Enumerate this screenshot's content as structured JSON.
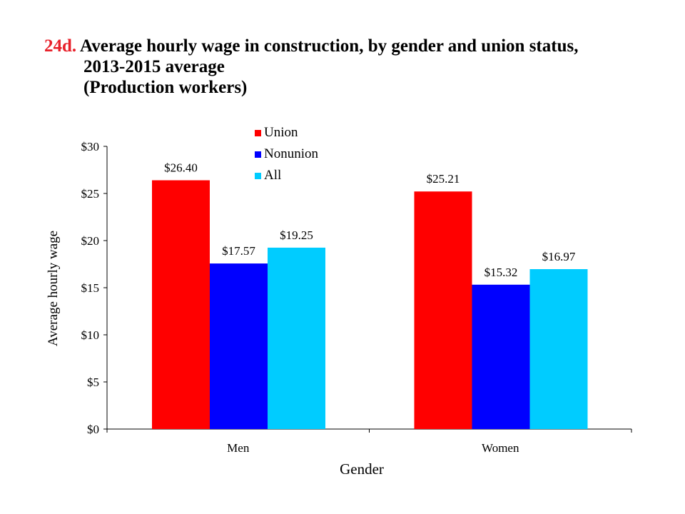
{
  "title": {
    "id": "24d.",
    "line1": "Average hourly wage in construction, by gender and union status,",
    "line2": "2013-2015 average",
    "line3": "(Production workers)"
  },
  "colors": {
    "title_id": "#e8202a"
  },
  "chart_data": {
    "type": "bar",
    "categories": [
      "Men",
      "Women"
    ],
    "series": [
      {
        "name": "Union",
        "values": [
          26.4,
          25.21
        ],
        "labels": [
          "$26.40",
          "$25.21"
        ],
        "color": "#ff0000"
      },
      {
        "name": "Nonunion",
        "values": [
          17.57,
          15.32
        ],
        "labels": [
          "$17.57",
          "$15.32"
        ],
        "color": "#0000ff"
      },
      {
        "name": "All",
        "values": [
          19.25,
          16.97
        ],
        "labels": [
          "$19.25",
          "$16.97"
        ],
        "color": "#00ccff"
      }
    ],
    "xlabel": "Gender",
    "ylabel": "Average hourly wage",
    "ylim": [
      0,
      30
    ],
    "yticks": [
      0,
      5,
      10,
      15,
      20,
      25,
      30
    ],
    "ytick_labels": [
      "$0",
      "$5",
      "$10",
      "$15",
      "$20",
      "$25",
      "$30"
    ],
    "grid": false,
    "legend_position": "top-center"
  }
}
